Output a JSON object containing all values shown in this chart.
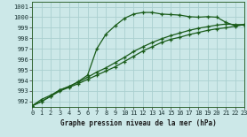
{
  "xlabel": "Graphe pression niveau de la mer (hPa)",
  "background_color": "#cce8e8",
  "grid_color": "#aad0d0",
  "line_color": "#1a5c1a",
  "xlim": [
    0,
    23
  ],
  "ylim": [
    991.5,
    1001.5
  ],
  "yticks": [
    992,
    993,
    994,
    995,
    996,
    997,
    998,
    999,
    1000,
    1001
  ],
  "xticks": [
    0,
    1,
    2,
    3,
    4,
    5,
    6,
    7,
    8,
    9,
    10,
    11,
    12,
    13,
    14,
    15,
    16,
    17,
    18,
    19,
    20,
    21,
    22,
    23
  ],
  "line1_x": [
    0,
    1,
    2,
    3,
    4,
    5,
    6,
    7,
    8,
    9,
    10,
    11,
    12,
    13,
    14,
    15,
    16,
    17,
    18,
    19,
    20,
    21,
    22,
    23
  ],
  "line1_y": [
    991.6,
    992.2,
    992.6,
    993.1,
    993.4,
    993.9,
    994.5,
    997.0,
    998.4,
    999.2,
    999.9,
    1000.3,
    1000.45,
    1000.45,
    1000.3,
    1000.25,
    1000.2,
    1000.05,
    1000.0,
    1000.05,
    1000.0,
    999.5,
    999.2,
    999.3
  ],
  "line2_x": [
    0,
    1,
    2,
    3,
    4,
    5,
    6,
    7,
    8,
    9,
    10,
    11,
    12,
    13,
    14,
    15,
    16,
    17,
    18,
    19,
    20,
    21,
    22,
    23
  ],
  "line2_y": [
    991.6,
    992.0,
    992.5,
    993.0,
    993.35,
    993.7,
    994.1,
    994.5,
    994.9,
    995.3,
    995.8,
    996.3,
    996.8,
    997.2,
    997.6,
    997.9,
    998.1,
    998.35,
    998.55,
    998.75,
    998.9,
    999.0,
    999.15,
    999.3
  ],
  "line3_x": [
    0,
    1,
    2,
    3,
    4,
    5,
    6,
    7,
    8,
    9,
    10,
    11,
    12,
    13,
    14,
    15,
    16,
    17,
    18,
    19,
    20,
    21,
    22,
    23
  ],
  "line3_y": [
    991.6,
    992.0,
    992.5,
    993.1,
    993.45,
    993.85,
    994.3,
    994.8,
    995.2,
    995.7,
    996.2,
    996.75,
    997.2,
    997.6,
    997.95,
    998.25,
    998.5,
    998.75,
    998.95,
    999.1,
    999.25,
    999.35,
    999.3,
    999.3
  ]
}
